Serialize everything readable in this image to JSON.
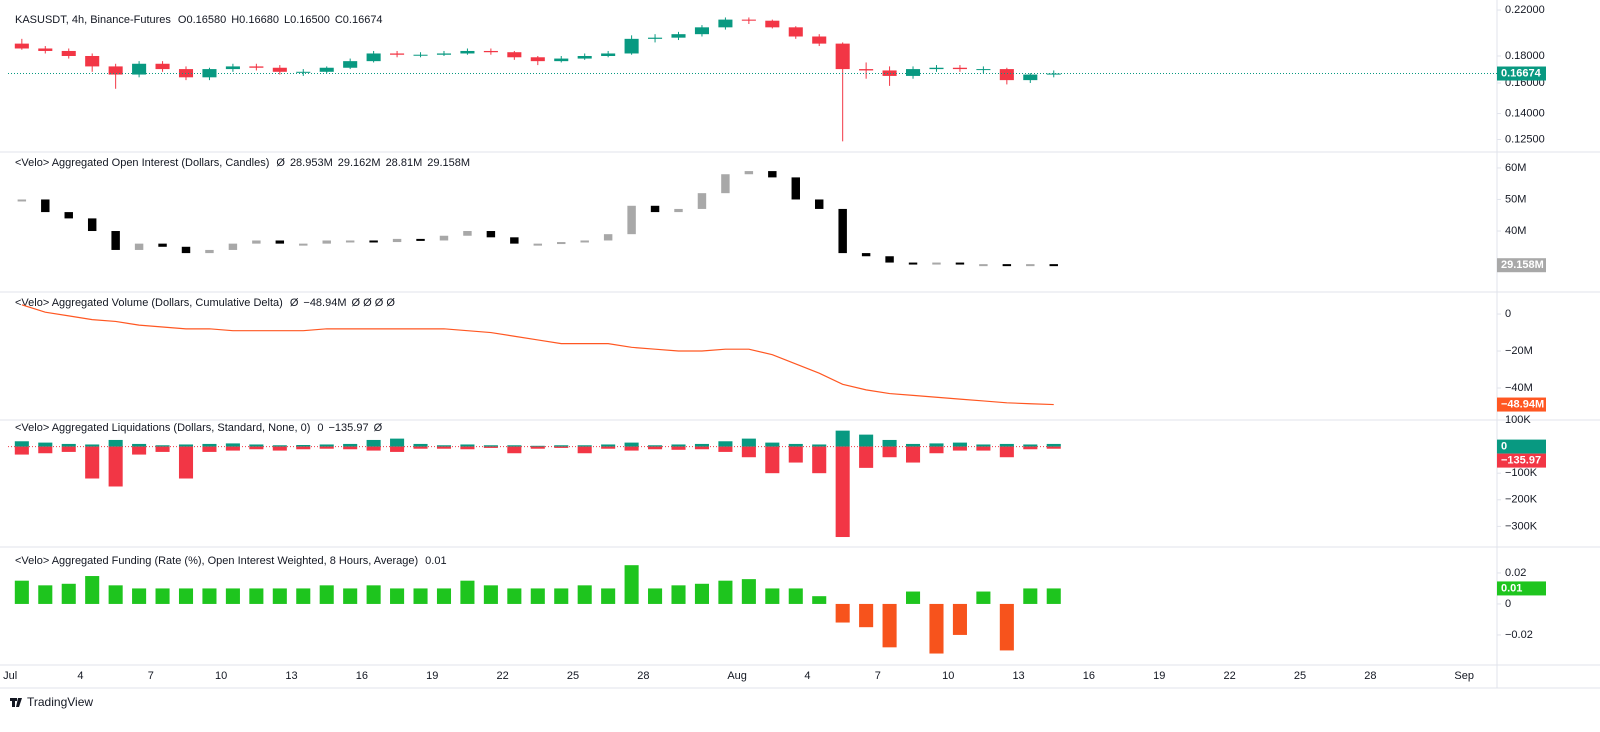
{
  "footer": "TradingView",
  "x_axis": {
    "xlim": [
      -0.09,
      63.4
    ],
    "x": [
      0.5,
      1.5,
      2.5,
      3.5,
      4.5,
      5.5,
      6.5,
      7.5,
      8.5,
      9.5,
      10.5,
      11.5,
      12.5,
      13.5,
      14.5,
      15.5,
      16.5,
      17.5,
      18.5,
      19.5,
      20.5,
      21.5,
      22.5,
      23.5,
      24.5,
      25.5,
      26.5,
      27.5,
      28.5,
      29.5,
      30.5,
      31.5,
      32.5,
      33.5,
      34.5,
      35.5,
      36.5,
      37.5,
      38.5,
      39.5,
      40.5,
      41.5,
      42.5,
      43.5,
      44.5
    ],
    "xticks": [
      {
        "value": 0,
        "label": "Jul"
      },
      {
        "value": 3,
        "label": "4"
      },
      {
        "value": 6,
        "label": "7"
      },
      {
        "value": 9,
        "label": "10"
      },
      {
        "value": 12,
        "label": "13"
      },
      {
        "value": 15,
        "label": "16"
      },
      {
        "value": 18,
        "label": "19"
      },
      {
        "value": 21,
        "label": "22"
      },
      {
        "value": 24,
        "label": "25"
      },
      {
        "value": 27,
        "label": "28"
      },
      {
        "value": 31,
        "label": "Aug"
      },
      {
        "value": 34,
        "label": "4"
      },
      {
        "value": 37,
        "label": "7"
      },
      {
        "value": 40,
        "label": "10"
      },
      {
        "value": 43,
        "label": "13"
      },
      {
        "value": 46,
        "label": "16"
      },
      {
        "value": 49,
        "label": "19"
      },
      {
        "value": 52,
        "label": "22"
      },
      {
        "value": 55,
        "label": "25"
      },
      {
        "value": 58,
        "label": "28"
      },
      {
        "value": 62,
        "label": "Sep"
      }
    ]
  },
  "chart_data": [
    {
      "type": "candlestick",
      "title": "KASUSDT, 4h, Binance-Futures",
      "legend": [
        {
          "text": "O0.16580",
          "color": "#089981"
        },
        {
          "text": "H0.16680",
          "color": "#089981"
        },
        {
          "text": "L0.16500",
          "color": "#089981"
        },
        {
          "text": "C0.16674",
          "color": "#089981"
        }
      ],
      "log_scale": true,
      "ylim": [
        0.1194,
        0.2249
      ],
      "yticks": [
        {
          "value": 0.22,
          "label": "0.22000"
        },
        {
          "value": 0.18,
          "label": "0.18000"
        },
        {
          "value": 0.16,
          "label": "0.16000"
        },
        {
          "value": 0.14,
          "label": "0.14000"
        },
        {
          "value": 0.125,
          "label": "0.12500"
        }
      ],
      "up_color": "#089981",
      "down_color": "#f23645",
      "open": [
        0.19,
        0.186,
        0.184,
        0.18,
        0.172,
        0.166,
        0.174,
        0.17,
        0.164,
        0.17,
        0.172,
        0.171,
        0.168,
        0.168,
        0.171,
        0.176,
        0.182,
        0.181,
        0.181,
        0.182,
        0.184,
        0.183,
        0.179,
        0.176,
        0.178,
        0.18,
        0.182,
        0.194,
        0.195,
        0.198,
        0.204,
        0.211,
        0.21,
        0.204,
        0.196,
        0.19,
        0.17,
        0.169,
        0.165,
        0.17,
        0.171,
        0.17,
        0.17,
        0.162,
        0.166
      ],
      "high": [
        0.194,
        0.188,
        0.186,
        0.182,
        0.174,
        0.176,
        0.176,
        0.172,
        0.171,
        0.174,
        0.174,
        0.173,
        0.17,
        0.172,
        0.178,
        0.184,
        0.184,
        0.183,
        0.184,
        0.186,
        0.186,
        0.184,
        0.18,
        0.18,
        0.182,
        0.184,
        0.197,
        0.198,
        0.2,
        0.206,
        0.213,
        0.213,
        0.211,
        0.205,
        0.198,
        0.191,
        0.175,
        0.172,
        0.172,
        0.173,
        0.173,
        0.172,
        0.171,
        0.167,
        0.169
      ],
      "low": [
        0.185,
        0.182,
        0.178,
        0.168,
        0.156,
        0.164,
        0.168,
        0.162,
        0.162,
        0.168,
        0.169,
        0.166,
        0.165,
        0.167,
        0.17,
        0.175,
        0.179,
        0.179,
        0.18,
        0.181,
        0.181,
        0.177,
        0.173,
        0.175,
        0.177,
        0.179,
        0.181,
        0.191,
        0.193,
        0.196,
        0.202,
        0.207,
        0.203,
        0.194,
        0.188,
        0.124,
        0.163,
        0.158,
        0.163,
        0.168,
        0.168,
        0.167,
        0.159,
        0.16,
        0.164
      ],
      "close": [
        0.186,
        0.184,
        0.18,
        0.172,
        0.166,
        0.174,
        0.17,
        0.164,
        0.17,
        0.172,
        0.171,
        0.168,
        0.168,
        0.171,
        0.176,
        0.182,
        0.181,
        0.181,
        0.182,
        0.184,
        0.183,
        0.179,
        0.176,
        0.178,
        0.18,
        0.182,
        0.194,
        0.195,
        0.198,
        0.204,
        0.211,
        0.21,
        0.204,
        0.196,
        0.19,
        0.17,
        0.169,
        0.165,
        0.17,
        0.171,
        0.17,
        0.17,
        0.162,
        0.166,
        0.1667
      ],
      "last_labels": [
        {
          "value": 0.16674,
          "color": "#089981"
        }
      ]
    },
    {
      "type": "candles",
      "title": "<Velo> Aggregated Open Interest (Dollars, Candles)",
      "legend": [
        {
          "text": "Ø",
          "color": "#131722"
        },
        {
          "text": "28.953M",
          "color": "#a3a6af"
        },
        {
          "text": "29.162M",
          "color": "#a3a6af"
        },
        {
          "text": "28.81M",
          "color": "#a3a6af"
        },
        {
          "text": "29.158M",
          "color": "#a3a6af"
        }
      ],
      "ylim": [
        21.3,
        64.1
      ],
      "yticks": [
        {
          "value": 60,
          "label": "60M"
        },
        {
          "value": 50,
          "label": "50M"
        },
        {
          "value": 40,
          "label": "40M"
        }
      ],
      "up_color": "#a8a8a8",
      "down_color": "#000000",
      "values": [
        50,
        46,
        44,
        40,
        34,
        36,
        35,
        33,
        34,
        36,
        37,
        36,
        36,
        37,
        37,
        36.5,
        37.5,
        37,
        38.5,
        40,
        38,
        36,
        36,
        36.5,
        37,
        39,
        48,
        46,
        47,
        52,
        58,
        59,
        57,
        50,
        47,
        33,
        32,
        30,
        29.5,
        30,
        29.5,
        29.5,
        29,
        29.5,
        29.158
      ],
      "last_labels": [
        {
          "value": 29.158,
          "label": "29.158M",
          "color": "#a8a8a8"
        }
      ]
    },
    {
      "type": "line",
      "title": "<Velo> Aggregated Volume (Dollars, Cumulative Delta)",
      "legend": [
        {
          "text": "Ø",
          "color": "#131722"
        },
        {
          "text": "−48.94M",
          "color": "#ff5722"
        },
        {
          "text": "Ø Ø Ø Ø",
          "color": "#131722"
        }
      ],
      "ylim": [
        -57.3,
        10.3
      ],
      "yticks": [
        0,
        {
          "value": -20,
          "label": "−20M"
        },
        {
          "value": -40,
          "label": "−40M"
        }
      ],
      "color": "#ff5722",
      "values": [
        5,
        1,
        -1,
        -3,
        -4,
        -6,
        -7,
        -8,
        -8,
        -9,
        -9,
        -9,
        -9,
        -8,
        -8,
        -8,
        -8,
        -8,
        -8,
        -9,
        -10,
        -12,
        -14,
        -16,
        -16,
        -16,
        -18,
        -19,
        -20,
        -20,
        -19,
        -19,
        -22,
        -27,
        -32,
        -38,
        -41,
        -43,
        -44,
        -45,
        -46,
        -47,
        -48,
        -48.5,
        -48.94
      ],
      "last_labels": [
        {
          "value": -48.94,
          "label": "−48.94M",
          "color": "#ff5722"
        }
      ]
    },
    {
      "type": "bar",
      "title": "<Velo> Aggregated Liquidations (Dollars, Standard, None, 0)",
      "legend": [
        {
          "text": "0",
          "color": "#089981"
        },
        {
          "text": "−135.97",
          "color": "#f23645"
        },
        {
          "text": "Ø",
          "color": "#131722"
        }
      ],
      "ylim": [
        -370000,
        100000
      ],
      "yticks": [
        {
          "value": 100000,
          "label": "100K"
        },
        0,
        {
          "value": -100000,
          "label": "−100K"
        },
        {
          "value": -200000,
          "label": "−200K"
        },
        {
          "value": -300000,
          "label": "−300K"
        }
      ],
      "zero_line_color": "#f23645",
      "series": [
        {
          "color": "#089981",
          "values": [
            20000,
            15000,
            10000,
            8000,
            25000,
            10000,
            5000,
            8000,
            10000,
            12000,
            8000,
            5000,
            6000,
            8000,
            10000,
            25000,
            30000,
            10000,
            5000,
            8000,
            5000,
            5000,
            3000,
            5000,
            5000,
            8000,
            15000,
            5000,
            8000,
            10000,
            20000,
            30000,
            15000,
            10000,
            8000,
            60000,
            45000,
            25000,
            10000,
            12000,
            15000,
            8000,
            10000,
            8000,
            10000
          ]
        },
        {
          "color": "#f23645",
          "values": [
            -30000,
            -25000,
            -20000,
            -120000,
            -150000,
            -30000,
            -20000,
            -120000,
            -20000,
            -15000,
            -10000,
            -15000,
            -10000,
            -8000,
            -10000,
            -15000,
            -20000,
            -8000,
            -8000,
            -10000,
            -5000,
            -25000,
            -8000,
            -5000,
            -25000,
            -8000,
            -15000,
            -10000,
            -12000,
            -10000,
            -20000,
            -40000,
            -100000,
            -60000,
            -100000,
            -340000,
            -80000,
            -40000,
            -60000,
            -25000,
            -15000,
            -15000,
            -40000,
            -10000,
            -8000
          ]
        }
      ],
      "last_labels": [
        {
          "value": 0,
          "color": "#089981"
        },
        {
          "value": -135.97,
          "label": "−135.97",
          "color": "#f23645"
        }
      ]
    },
    {
      "type": "bar",
      "title": "<Velo> Aggregated Funding (Rate (%), Open Interest Weighted, 8 Hours, Average)",
      "legend": [
        {
          "text": "0.01",
          "color": "#1ec51e"
        }
      ],
      "ylim": [
        -0.0394,
        0.0348
      ],
      "yticks": [
        0.02,
        0,
        {
          "value": -0.02,
          "label": "−0.02"
        }
      ],
      "pos_color": "#1ec51e",
      "neg_color": "#f7531c",
      "values": [
        0.015,
        0.012,
        0.013,
        0.018,
        0.012,
        0.01,
        0.01,
        0.01,
        0.01,
        0.01,
        0.01,
        0.01,
        0.01,
        0.012,
        0.01,
        0.012,
        0.01,
        0.01,
        0.01,
        0.015,
        0.012,
        0.01,
        0.01,
        0.01,
        0.012,
        0.01,
        0.025,
        0.01,
        0.012,
        0.013,
        0.015,
        0.016,
        0.01,
        0.01,
        0.005,
        -0.012,
        -0.015,
        -0.028,
        0.008,
        -0.032,
        -0.02,
        0.008,
        -0.03,
        0.01,
        0.01
      ],
      "last_labels": [
        {
          "value": 0.01,
          "color": "#1ec51e"
        }
      ]
    }
  ]
}
